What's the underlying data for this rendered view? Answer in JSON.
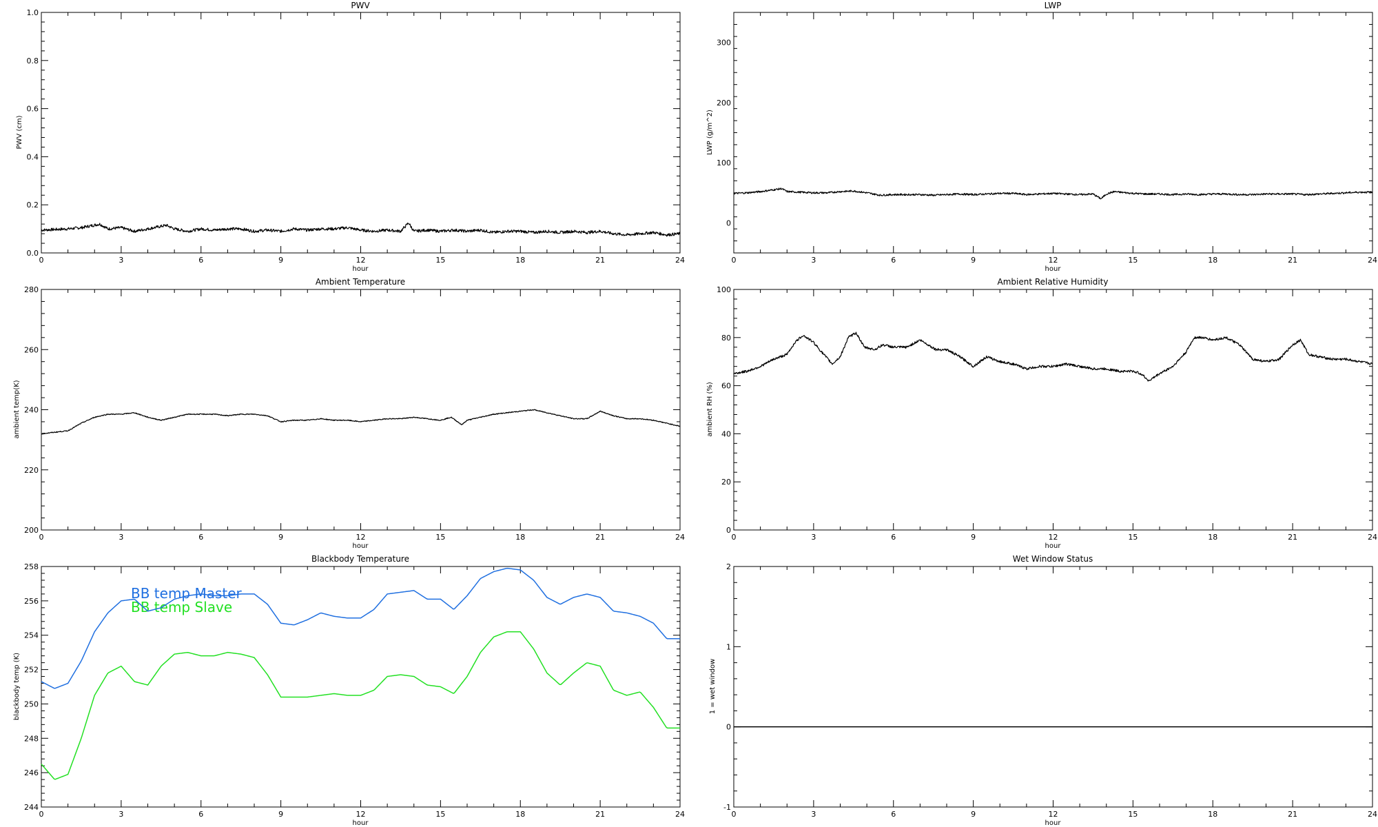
{
  "chart_data": [
    {
      "id": "pwv",
      "type": "line",
      "title": "PWV",
      "xlabel": "hour",
      "ylabel": "PWV (cm)",
      "xlim": [
        0,
        24
      ],
      "ylim": [
        0,
        1.0
      ],
      "xticks": [
        0,
        3,
        6,
        9,
        12,
        15,
        18,
        21,
        24
      ],
      "yticks": [
        0.0,
        0.2,
        0.4,
        0.6,
        0.8,
        1.0
      ],
      "ytick_labels": [
        "0.0",
        "0.2",
        "0.4",
        "0.6",
        "0.8",
        "1.0"
      ],
      "noise": 0.006,
      "series": [
        {
          "color": "#000000",
          "x": [
            0,
            1,
            1.5,
            2.2,
            2.5,
            3,
            3.5,
            4,
            4.7,
            5,
            5.5,
            6,
            6.5,
            7,
            7.5,
            8,
            8.5,
            9,
            9.5,
            10,
            10.5,
            11,
            11.5,
            12,
            12.5,
            13,
            13.5,
            13.8,
            14,
            14.5,
            15,
            15.5,
            16,
            16.5,
            17,
            17.5,
            18,
            18.5,
            19,
            19.5,
            20,
            20.5,
            21,
            21.5,
            22,
            22.5,
            23,
            23.5,
            24
          ],
          "y": [
            0.095,
            0.1,
            0.105,
            0.12,
            0.1,
            0.105,
            0.09,
            0.1,
            0.115,
            0.1,
            0.09,
            0.1,
            0.095,
            0.1,
            0.1,
            0.09,
            0.095,
            0.09,
            0.1,
            0.095,
            0.1,
            0.1,
            0.105,
            0.095,
            0.09,
            0.095,
            0.09,
            0.125,
            0.09,
            0.095,
            0.09,
            0.095,
            0.09,
            0.095,
            0.085,
            0.09,
            0.09,
            0.085,
            0.09,
            0.085,
            0.09,
            0.085,
            0.09,
            0.08,
            0.075,
            0.08,
            0.085,
            0.075,
            0.08
          ]
        }
      ]
    },
    {
      "id": "lwp",
      "type": "line",
      "title": "LWP",
      "xlabel": "hour",
      "ylabel": "LWP (g/m^2)",
      "xlim": [
        0,
        24
      ],
      "ylim": [
        -50,
        350
      ],
      "xticks": [
        0,
        3,
        6,
        9,
        12,
        15,
        18,
        21,
        24
      ],
      "yticks": [
        0,
        100,
        200,
        300
      ],
      "ytick_labels": [
        "0",
        "100",
        "200",
        "300"
      ],
      "noise": 1.5,
      "series": [
        {
          "color": "#000000",
          "x": [
            0,
            0.5,
            1,
            1.5,
            1.8,
            2,
            2.5,
            3,
            3.5,
            4,
            4.5,
            5,
            5.5,
            6,
            6.5,
            7,
            7.5,
            8,
            8.5,
            9,
            9.5,
            10,
            10.5,
            11,
            11.5,
            12,
            12.5,
            13,
            13.5,
            13.8,
            14,
            14.3,
            14.5,
            15,
            15.5,
            16,
            16.5,
            17,
            17.5,
            18,
            18.5,
            19,
            19.5,
            20,
            20.5,
            21,
            21.5,
            22,
            22.5,
            23,
            23.5,
            24
          ],
          "y": [
            49,
            50,
            52,
            55,
            57,
            52,
            51,
            50,
            50,
            52,
            53,
            50,
            46,
            47,
            47,
            47,
            46,
            47,
            48,
            47,
            48,
            49,
            49,
            47,
            48,
            49,
            48,
            47,
            48,
            40,
            48,
            52,
            51,
            49,
            48,
            48,
            47,
            48,
            47,
            48,
            48,
            47,
            47,
            48,
            48,
            48,
            47,
            48,
            49,
            50,
            51,
            51
          ]
        }
      ]
    },
    {
      "id": "ambient-temp",
      "type": "line",
      "title": "Ambient Temperature",
      "xlabel": "hour",
      "ylabel": "ambient temp(K)",
      "xlim": [
        0,
        24
      ],
      "ylim": [
        200,
        280
      ],
      "xticks": [
        0,
        3,
        6,
        9,
        12,
        15,
        18,
        21,
        24
      ],
      "yticks": [
        200,
        220,
        240,
        260,
        280
      ],
      "ytick_labels": [
        "200",
        "220",
        "240",
        "260",
        "280"
      ],
      "noise": 0.15,
      "series": [
        {
          "color": "#000000",
          "x": [
            0,
            0.5,
            1,
            1.5,
            2,
            2.5,
            3,
            3.5,
            4,
            4.5,
            5,
            5.5,
            6,
            6.5,
            7,
            7.5,
            8,
            8.5,
            9,
            9.5,
            10,
            10.5,
            11,
            11.5,
            12,
            12.5,
            13,
            13.5,
            14,
            14.5,
            15,
            15.4,
            15.8,
            16,
            16.5,
            17,
            17.5,
            18,
            18.5,
            19,
            19.5,
            20,
            20.5,
            21,
            21.5,
            22,
            22.5,
            23,
            23.5,
            24
          ],
          "y": [
            232,
            232.5,
            233,
            235.5,
            237.5,
            238.5,
            238.5,
            239,
            237.5,
            236.5,
            237.5,
            238.5,
            238.5,
            238.5,
            238,
            238.5,
            238.5,
            238,
            236,
            236.5,
            236.5,
            237,
            236.5,
            236.5,
            236,
            236.5,
            237,
            237,
            237.5,
            237,
            236.5,
            237.5,
            235,
            236.5,
            237.5,
            238.5,
            239,
            239.5,
            240,
            239,
            238,
            237,
            237,
            239.5,
            238,
            237,
            237,
            236.5,
            235.5,
            234.5
          ]
        }
      ]
    },
    {
      "id": "ambient-rh",
      "type": "line",
      "title": "Ambient Relative Humidity",
      "xlabel": "hour",
      "ylabel": "ambient RH (%)",
      "xlim": [
        0,
        24
      ],
      "ylim": [
        0,
        100
      ],
      "xticks": [
        0,
        3,
        6,
        9,
        12,
        15,
        18,
        21,
        24
      ],
      "yticks": [
        0,
        20,
        40,
        60,
        80,
        100
      ],
      "ytick_labels": [
        "0",
        "20",
        "40",
        "60",
        "80",
        "100"
      ],
      "noise": 0.5,
      "series": [
        {
          "color": "#000000",
          "x": [
            0,
            0.5,
            1,
            1.5,
            2,
            2.3,
            2.6,
            3,
            3.3,
            3.7,
            4,
            4.3,
            4.6,
            4.9,
            5.3,
            5.6,
            6,
            6.5,
            7,
            7.3,
            7.6,
            8,
            8.5,
            9,
            9.5,
            10,
            10.5,
            11,
            11.5,
            12,
            12.5,
            13,
            13.5,
            14,
            14.5,
            15,
            15.3,
            15.6,
            16,
            16.5,
            17,
            17.3,
            17.6,
            18,
            18.5,
            19,
            19.5,
            20,
            20.5,
            21,
            21.3,
            21.6,
            22,
            22.5,
            23,
            23.5,
            24
          ],
          "y": [
            65,
            66,
            68,
            71,
            73,
            78,
            81,
            78,
            74,
            69,
            72,
            80,
            82,
            76,
            75,
            77,
            76,
            76,
            79,
            77,
            75,
            75,
            72,
            68,
            72,
            70,
            69,
            67,
            68,
            68,
            69,
            68,
            67,
            67,
            66,
            66,
            65,
            62,
            65,
            68,
            74,
            80,
            80,
            79,
            80,
            77,
            71,
            70,
            71,
            77,
            79,
            73,
            72,
            71,
            71,
            70,
            69
          ]
        }
      ]
    },
    {
      "id": "blackbody-temp",
      "type": "line",
      "title": "Blackbody Temperature",
      "xlabel": "hour",
      "ylabel": "blackbody temp (K)",
      "xlim": [
        0,
        24
      ],
      "ylim": [
        244,
        258
      ],
      "xticks": [
        0,
        3,
        6,
        9,
        12,
        15,
        18,
        21,
        24
      ],
      "yticks": [
        244,
        246,
        248,
        250,
        252,
        254,
        256,
        258
      ],
      "ytick_labels": [
        "244",
        "246",
        "248",
        "250",
        "252",
        "254",
        "256",
        "258"
      ],
      "noise": 0,
      "legend": {
        "placement": "top-left"
      },
      "series": [
        {
          "name": "BB temp Master",
          "color": "#1f6fe0",
          "x": [
            0,
            0.5,
            1,
            1.5,
            2,
            2.5,
            3,
            3.5,
            4,
            4.5,
            5,
            5.5,
            6,
            6.5,
            7,
            7.5,
            8,
            8.5,
            9,
            9.5,
            10,
            10.5,
            11,
            11.5,
            12,
            12.5,
            13,
            13.5,
            14,
            14.5,
            15,
            15.5,
            16,
            16.5,
            17,
            17.5,
            18,
            18.5,
            19,
            19.5,
            20,
            20.5,
            21,
            21.5,
            22,
            22.5,
            23,
            23.5,
            24
          ],
          "y": [
            251.3,
            250.9,
            251.2,
            252.5,
            254.2,
            255.3,
            256,
            256.1,
            255.4,
            255.6,
            256.1,
            256.3,
            256.4,
            256.3,
            256.3,
            256.4,
            256.4,
            255.8,
            254.7,
            254.6,
            254.9,
            255.3,
            255.1,
            255,
            255,
            255.5,
            256.4,
            256.5,
            256.6,
            256.1,
            256.1,
            255.5,
            256.3,
            257.3,
            257.7,
            257.9,
            257.8,
            257.2,
            256.2,
            255.8,
            256.2,
            256.4,
            256.2,
            255.4,
            255.3,
            255.1,
            254.7,
            253.8,
            253.8
          ]
        },
        {
          "name": "BB temp Slave",
          "color": "#22e022",
          "x": [
            0,
            0.5,
            1,
            1.5,
            2,
            2.5,
            3,
            3.5,
            4,
            4.5,
            5,
            5.5,
            6,
            6.5,
            7,
            7.5,
            8,
            8.5,
            9,
            9.5,
            10,
            10.5,
            11,
            11.5,
            12,
            12.5,
            13,
            13.5,
            14,
            14.5,
            15,
            15.5,
            16,
            16.5,
            17,
            17.5,
            18,
            18.5,
            19,
            19.5,
            20,
            20.5,
            21,
            21.5,
            22,
            22.5,
            23,
            23.5,
            24
          ],
          "y": [
            246.5,
            245.6,
            245.9,
            248,
            250.5,
            251.8,
            252.2,
            251.3,
            251.1,
            252.2,
            252.9,
            253,
            252.8,
            252.8,
            253,
            252.9,
            252.7,
            251.7,
            250.4,
            250.4,
            250.4,
            250.5,
            250.6,
            250.5,
            250.5,
            250.8,
            251.6,
            251.7,
            251.6,
            251.1,
            251,
            250.6,
            251.6,
            253,
            253.9,
            254.2,
            254.2,
            253.2,
            251.8,
            251.1,
            251.8,
            252.4,
            252.2,
            250.8,
            250.5,
            250.7,
            249.8,
            248.6,
            248.6
          ]
        }
      ]
    },
    {
      "id": "wet-window",
      "type": "line",
      "title": "Wet Window Status",
      "xlabel": "hour",
      "ylabel": "1 = wet window",
      "xlim": [
        0,
        24
      ],
      "ylim": [
        -1,
        2
      ],
      "xticks": [
        0,
        3,
        6,
        9,
        12,
        15,
        18,
        21,
        24
      ],
      "yticks": [
        -1,
        0,
        1,
        2
      ],
      "ytick_labels": [
        "-1",
        "0",
        "1",
        "2"
      ],
      "noise": 0,
      "series": [
        {
          "color": "#000000",
          "x": [
            0,
            24
          ],
          "y": [
            0,
            0
          ]
        }
      ]
    }
  ]
}
